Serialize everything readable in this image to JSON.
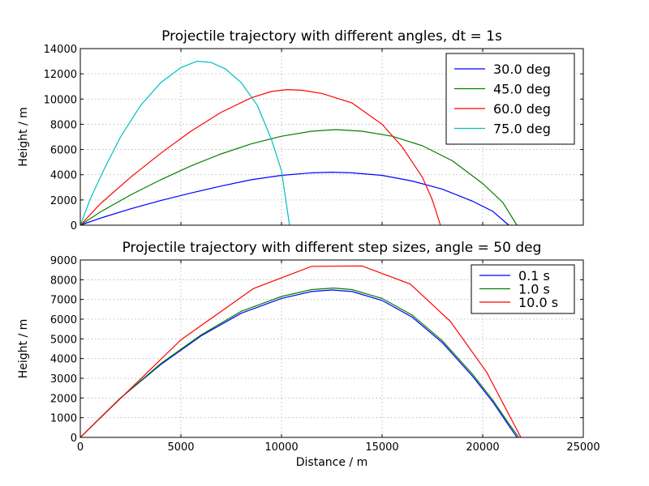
{
  "chart_data": [
    {
      "type": "line",
      "title": "Projectile trajectory with different angles, dt = 1s",
      "xlabel": "",
      "ylabel": "Height / m",
      "xlim": [
        0,
        25000
      ],
      "ylim": [
        0,
        14000
      ],
      "xticks": [
        0,
        5000,
        10000,
        15000,
        20000,
        25000
      ],
      "yticks": [
        0,
        2000,
        4000,
        6000,
        8000,
        10000,
        12000,
        14000
      ],
      "show_xtick_labels": false,
      "grid": true,
      "legend": "top-right",
      "series": [
        {
          "name": "30.0 deg",
          "color": "#0000ff",
          "x": [
            0,
            1000,
            2500,
            4000,
            5500,
            7000,
            8500,
            10000,
            11500,
            12500,
            13500,
            15000,
            16500,
            18000,
            19500,
            20500,
            21300
          ],
          "y": [
            0,
            560,
            1300,
            1950,
            2550,
            3100,
            3600,
            3950,
            4150,
            4200,
            4150,
            3950,
            3500,
            2850,
            1900,
            1100,
            0
          ]
        },
        {
          "name": "45.0 deg",
          "color": "#008000",
          "x": [
            0,
            1000,
            2500,
            4000,
            5500,
            7000,
            8500,
            10000,
            11500,
            12700,
            14000,
            15500,
            17000,
            18500,
            20000,
            21000,
            21700
          ],
          "y": [
            0,
            1050,
            2400,
            3600,
            4700,
            5650,
            6450,
            7050,
            7450,
            7580,
            7450,
            7050,
            6300,
            5100,
            3300,
            1800,
            0
          ]
        },
        {
          "name": "60.0 deg",
          "color": "#ff0000",
          "x": [
            0,
            1000,
            2500,
            4000,
            5500,
            7000,
            8500,
            9500,
            10300,
            11000,
            12000,
            13500,
            15000,
            16000,
            17000,
            17500,
            17900
          ],
          "y": [
            0,
            1700,
            3800,
            5700,
            7450,
            8950,
            10100,
            10600,
            10750,
            10700,
            10450,
            9700,
            8000,
            6200,
            3800,
            2000,
            0
          ]
        },
        {
          "name": "75.0 deg",
          "color": "#00bfbf",
          "x": [
            0,
            500,
            1200,
            2000,
            3000,
            4000,
            5000,
            5800,
            6500,
            7200,
            8000,
            8800,
            9500,
            10000,
            10400
          ],
          "y": [
            0,
            2100,
            4500,
            7000,
            9500,
            11300,
            12500,
            13000,
            12900,
            12400,
            11300,
            9500,
            6800,
            4300,
            0
          ]
        }
      ]
    },
    {
      "type": "line",
      "title": "Projectile trajectory with different step sizes, angle = 50 deg",
      "xlabel": "Distance / m",
      "ylabel": "Height / m",
      "xlim": [
        0,
        25000
      ],
      "ylim": [
        0,
        9000
      ],
      "xticks": [
        0,
        5000,
        10000,
        15000,
        20000,
        25000
      ],
      "yticks": [
        0,
        1000,
        2000,
        3000,
        4000,
        5000,
        6000,
        7000,
        8000,
        9000
      ],
      "show_xtick_labels": true,
      "grid": true,
      "legend": "top-right",
      "series": [
        {
          "name": "0.1 s",
          "color": "#0000ff",
          "x": [
            0,
            2000,
            4000,
            6000,
            8000,
            10000,
            11500,
            12500,
            13500,
            15000,
            16500,
            18000,
            19500,
            20500,
            21300,
            21700
          ],
          "y": [
            0,
            2000,
            3700,
            5150,
            6300,
            7050,
            7400,
            7480,
            7400,
            6950,
            6100,
            4800,
            3100,
            1800,
            600,
            0
          ]
        },
        {
          "name": "1.0 s",
          "color": "#008000",
          "x": [
            0,
            2000,
            4000,
            6000,
            8000,
            10000,
            11500,
            12600,
            13500,
            15000,
            16500,
            18000,
            19500,
            20500,
            21300,
            21800
          ],
          "y": [
            0,
            2000,
            3750,
            5200,
            6400,
            7150,
            7500,
            7580,
            7500,
            7050,
            6200,
            4900,
            3200,
            1900,
            700,
            0
          ]
        },
        {
          "name": "10.0 s",
          "color": "#ff0000",
          "x": [
            0,
            5000,
            8600,
            11500,
            14000,
            16400,
            18400,
            20200,
            21900
          ],
          "y": [
            0,
            4950,
            7550,
            8680,
            8700,
            7780,
            5880,
            3300,
            0
          ]
        }
      ]
    }
  ]
}
